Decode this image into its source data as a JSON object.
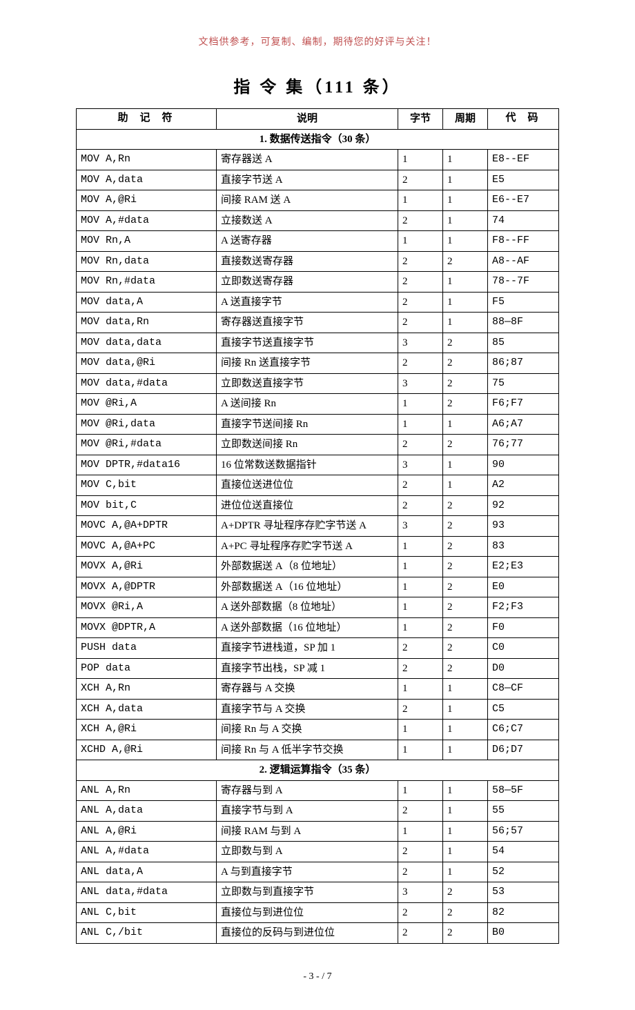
{
  "header_note": "文档供参考，可复制、编制，期待您的好评与关注！",
  "title": "指 令 集（111 条）",
  "columns": {
    "mnemonic": "助 记 符",
    "desc": "说明",
    "bytes": "字节",
    "cycles": "周期",
    "code": "代 码"
  },
  "footer": "- 3 -  / 7",
  "section1": {
    "title": "1. 数据传送指令（30 条）",
    "rows": [
      {
        "m": "MOV A,Rn",
        "d": "寄存器送 A",
        "b": "1",
        "c": "1",
        "code": "E8--EF"
      },
      {
        "m": "MOV A,data",
        "d": "直接字节送 A",
        "b": "2",
        "c": "1",
        "code": "E5"
      },
      {
        "m": "MOV A,@Ri",
        "d": "间接 RAM 送 A",
        "b": "1",
        "c": "1",
        "code": "E6--E7"
      },
      {
        "m": "MOV A,#data",
        "d": "立接数送 A",
        "b": "2",
        "c": "1",
        "code": "74"
      },
      {
        "m": "MOV Rn,A",
        "d": "A 送寄存器",
        "b": "1",
        "c": "1",
        "code": "F8--FF"
      },
      {
        "m": "MOV Rn,data",
        "d": "直接数送寄存器",
        "b": "2",
        "c": "2",
        "code": "A8--AF"
      },
      {
        "m": "MOV Rn,#data",
        "d": "立即数送寄存器",
        "b": "2",
        "c": "1",
        "code": "78--7F"
      },
      {
        "m": "MOV data,A",
        "d": "A 送直接字节",
        "b": "2",
        "c": "1",
        "code": "F5"
      },
      {
        "m": "MOV data,Rn",
        "d": "寄存器送直接字节",
        "b": "2",
        "c": "1",
        "code": "88—8F"
      },
      {
        "m": "MOV data,data",
        "d": "直接字节送直接字节",
        "b": "3",
        "c": "2",
        "code": "85"
      },
      {
        "m": "MOV data,@Ri",
        "d": "间接 Rn 送直接字节",
        "b": "2",
        "c": "2",
        "code": "86;87"
      },
      {
        "m": "MOV data,#data",
        "d": "立即数送直接字节",
        "b": "3",
        "c": "2",
        "code": "75"
      },
      {
        "m": "MOV @Ri,A",
        "d": "A 送间接 Rn",
        "b": "1",
        "c": "2",
        "code": "F6;F7"
      },
      {
        "m": "MOV @Ri,data",
        "d": "直接字节送间接 Rn",
        "b": "1",
        "c": "1",
        "code": "A6;A7"
      },
      {
        "m": "MOV @Ri,#data",
        "d": "立即数送间接 Rn",
        "b": "2",
        "c": "2",
        "code": "76;77"
      },
      {
        "m": "MOV DPTR,#data16",
        "d": "16 位常数送数据指针",
        "b": "3",
        "c": "1",
        "code": "90"
      },
      {
        "m": "MOV C,bit",
        "d": "直接位送进位位",
        "b": "2",
        "c": "1",
        "code": "A2"
      },
      {
        "m": "MOV bit,C",
        "d": "进位位送直接位",
        "b": "2",
        "c": "2",
        "code": "92"
      },
      {
        "m": "MOVC A,@A+DPTR",
        "d": "A+DPTR 寻址程序存贮字节送 A",
        "b": "3",
        "c": "2",
        "code": "93"
      },
      {
        "m": "MOVC A,@A+PC",
        "d": "A+PC 寻址程序存贮字节送 A",
        "b": "1",
        "c": "2",
        "code": "83"
      },
      {
        "m": "MOVX A,@Ri",
        "d": "外部数据送 A（8 位地址）",
        "b": "1",
        "c": "2",
        "code": "E2;E3"
      },
      {
        "m": "MOVX A,@DPTR",
        "d": "外部数据送 A（16 位地址）",
        "b": "1",
        "c": "2",
        "code": "E0"
      },
      {
        "m": "MOVX @Ri,A",
        "d": "A 送外部数据（8 位地址）",
        "b": "1",
        "c": "2",
        "code": "F2;F3"
      },
      {
        "m": "MOVX @DPTR,A",
        "d": "A 送外部数据（16 位地址）",
        "b": "1",
        "c": "2",
        "code": "F0"
      },
      {
        "m": "PUSH data",
        "d": "直接字节进栈道，SP 加 1",
        "b": "2",
        "c": "2",
        "code": "C0"
      },
      {
        "m": "POP data",
        "d": "直接字节出栈，SP 减 1",
        "b": "2",
        "c": "2",
        "code": "D0"
      },
      {
        "m": "XCH A,Rn",
        "d": "寄存器与 A 交换",
        "b": "1",
        "c": "1",
        "code": "C8—CF"
      },
      {
        "m": "XCH A,data",
        "d": "直接字节与 A 交换",
        "b": "2",
        "c": "1",
        "code": "C5"
      },
      {
        "m": "XCH A,@Ri",
        "d": "间接 Rn 与 A 交换",
        "b": "1",
        "c": "1",
        "code": "C6;C7"
      },
      {
        "m": "XCHD A,@Ri",
        "d": "间接 Rn 与 A 低半字节交换",
        "b": "1",
        "c": "1",
        "code": "D6;D7"
      }
    ]
  },
  "section2": {
    "title": "2. 逻辑运算指令（35 条）",
    "rows": [
      {
        "m": "ANL A,Rn",
        "d": "寄存器与到 A",
        "b": "1",
        "c": "1",
        "code": "58—5F"
      },
      {
        "m": "ANL A,data",
        "d": "直接字节与到 A",
        "b": "2",
        "c": "1",
        "code": "55"
      },
      {
        "m": "ANL A,@Ri",
        "d": "间接 RAM 与到 A",
        "b": "1",
        "c": "1",
        "code": "56;57"
      },
      {
        "m": "ANL A,#data",
        "d": "立即数与到 A",
        "b": "2",
        "c": "1",
        "code": "54"
      },
      {
        "m": "ANL data,A",
        "d": "A 与到直接字节",
        "b": "2",
        "c": "1",
        "code": "52"
      },
      {
        "m": "ANL data,#data",
        "d": "立即数与到直接字节",
        "b": "3",
        "c": "2",
        "code": "53"
      },
      {
        "m": "ANL C,bit",
        "d": "直接位与到进位位",
        "b": "2",
        "c": "2",
        "code": "82"
      },
      {
        "m": "ANL C,/bit",
        "d": "直接位的反码与到进位位",
        "b": "2",
        "c": "2",
        "code": "B0"
      }
    ]
  }
}
